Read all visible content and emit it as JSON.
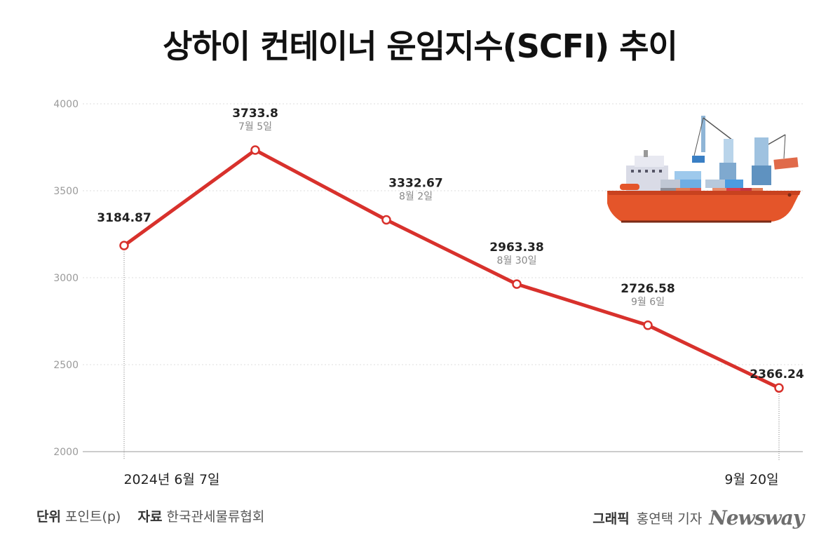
{
  "title": "상하이 컨테이너 운임지수(SCFI) 추이",
  "chart_data": {
    "type": "line",
    "title": "상하이 컨테이너 운임지수(SCFI) 추이",
    "ylim": [
      2000,
      4000
    ],
    "yticks": [
      "4000",
      "3500",
      "3000",
      "2500",
      "2000"
    ],
    "x_start_label": "2024년 6월 7일",
    "x_end_label": "9월 20일",
    "points": [
      {
        "value": 3184.87,
        "value_label": "3184.87",
        "date": ""
      },
      {
        "value": 3733.8,
        "value_label": "3733.8",
        "date": "7월 5일"
      },
      {
        "value": 3332.67,
        "value_label": "3332.67",
        "date": "8월 2일"
      },
      {
        "value": 2963.38,
        "value_label": "2963.38",
        "date": "8월 30일"
      },
      {
        "value": 2726.58,
        "value_label": "2726.58",
        "date": "9월 6일"
      },
      {
        "value": 2366.24,
        "value_label": "2366.24",
        "date": ""
      }
    ],
    "line_color": "#d8312c"
  },
  "footer": {
    "unit_label": "단위",
    "unit_value": "포인트(p)",
    "source_label": "자료",
    "source_value": "한국관세물류협회",
    "graphic_label": "그래픽",
    "reporter": "홍연택 기자",
    "brand": "Newsway"
  },
  "colors": {
    "line": "#d8312c",
    "hull": "#e4552a",
    "grid": "#dddddd"
  }
}
